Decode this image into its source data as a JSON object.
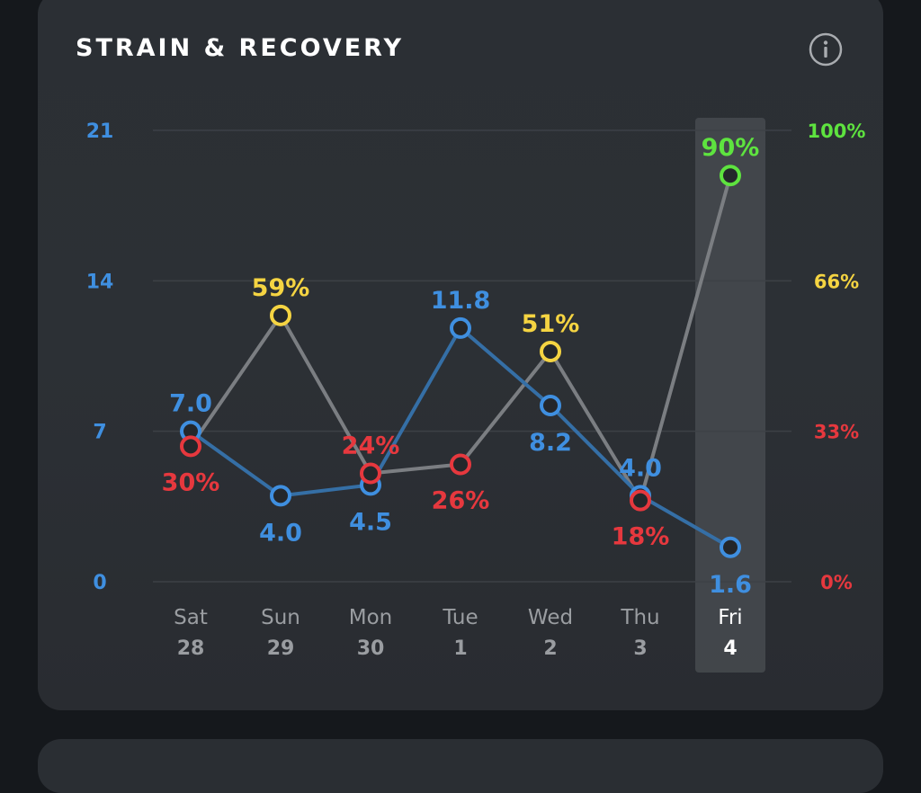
{
  "header": {
    "title": "STRAIN & RECOVERY",
    "info_icon": "info-icon"
  },
  "colors": {
    "strain": "#3f8fe0",
    "recovery_green": "#5ee33f",
    "recovery_yellow": "#f5d442",
    "recovery_red": "#e6383e",
    "recovery_line": "#7b7e82",
    "day_label": "#9a9da1",
    "day_label_selected": "#ffffff"
  },
  "chart_data": {
    "type": "line",
    "categories": [
      {
        "day": "Sat",
        "date": "28"
      },
      {
        "day": "Sun",
        "date": "29"
      },
      {
        "day": "Mon",
        "date": "30"
      },
      {
        "day": "Tue",
        "date": "1"
      },
      {
        "day": "Wed",
        "date": "2"
      },
      {
        "day": "Thu",
        "date": "3"
      },
      {
        "day": "Fri",
        "date": "4"
      }
    ],
    "selected_index": 6,
    "left_axis": {
      "ticks": [
        "21",
        "14",
        "7",
        "0"
      ],
      "range": [
        0,
        21
      ]
    },
    "right_axis": {
      "ticks": [
        "100%",
        "66%",
        "33%",
        "0%"
      ],
      "range": [
        0,
        100
      ]
    },
    "grid": true,
    "series": [
      {
        "key": "strain",
        "values": [
          7.0,
          4.0,
          4.5,
          11.8,
          8.2,
          4.0,
          1.6
        ],
        "labels": [
          "7.0",
          "4.0",
          "4.5",
          "11.8",
          "8.2",
          "4.0",
          "1.6"
        ],
        "label_position": [
          "above",
          "below",
          "below",
          "above",
          "below",
          "above",
          "below"
        ]
      },
      {
        "key": "recovery",
        "values": [
          30,
          59,
          24,
          26,
          51,
          18,
          90
        ],
        "labels": [
          "30%",
          "59%",
          "24%",
          "26%",
          "51%",
          "18%",
          "90%"
        ],
        "label_position": [
          "below",
          "above",
          "above",
          "below",
          "above",
          "below",
          "above"
        ]
      }
    ]
  }
}
